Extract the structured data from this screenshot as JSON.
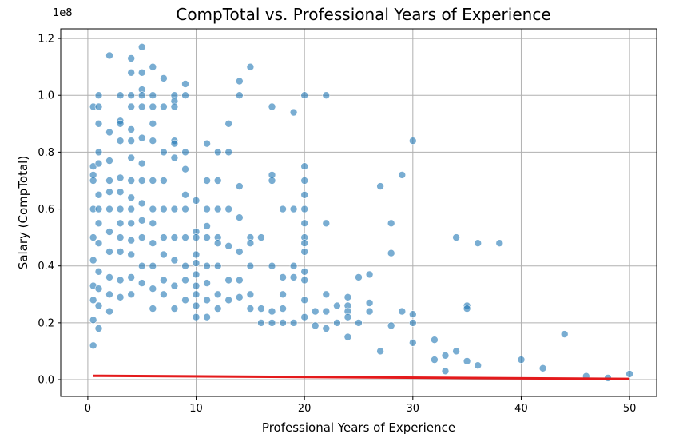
{
  "chart_data": {
    "type": "scatter",
    "title": "CompTotal vs. Professional Years of Experience",
    "xlabel": "Professional Years of Experience",
    "ylabel": "Salary (CompTotal)",
    "y_offset_label": "1e8",
    "xlim": [
      -2.5,
      52.5
    ],
    "ylim": [
      -5900000,
      123400000
    ],
    "x_ticks": [
      0,
      10,
      20,
      30,
      40,
      50
    ],
    "x_tick_labels": [
      "0",
      "10",
      "20",
      "30",
      "40",
      "50"
    ],
    "y_ticks": [
      0,
      20000000,
      40000000,
      60000000,
      80000000,
      100000000,
      120000000
    ],
    "y_tick_labels": [
      "0.0",
      "0.2",
      "0.4",
      "0.6",
      "0.8",
      "1.0",
      "1.2"
    ],
    "grid": true,
    "series": [
      {
        "values": [
          [
            0.5,
            96000000
          ],
          [
            0.5,
            75000000
          ],
          [
            0.5,
            72000000
          ],
          [
            0.5,
            70000000
          ],
          [
            0.5,
            60000000
          ],
          [
            0.5,
            50000000
          ],
          [
            0.5,
            42000000
          ],
          [
            0.5,
            33000000
          ],
          [
            0.5,
            28000000
          ],
          [
            0.5,
            21000000
          ],
          [
            0.5,
            12000000
          ],
          [
            1,
            100000000
          ],
          [
            1,
            96000000
          ],
          [
            1,
            90000000
          ],
          [
            1,
            80000000
          ],
          [
            1,
            76000000
          ],
          [
            1,
            65000000
          ],
          [
            1,
            60000000
          ],
          [
            1,
            55000000
          ],
          [
            1,
            48000000
          ],
          [
            1,
            38000000
          ],
          [
            1,
            32000000
          ],
          [
            1,
            26000000
          ],
          [
            1,
            18000000
          ],
          [
            2,
            114000000
          ],
          [
            2,
            87000000
          ],
          [
            2,
            77000000
          ],
          [
            2,
            70000000
          ],
          [
            2,
            66000000
          ],
          [
            2,
            60000000
          ],
          [
            2,
            52000000
          ],
          [
            2,
            45000000
          ],
          [
            2,
            36000000
          ],
          [
            2,
            30000000
          ],
          [
            2,
            24000000
          ],
          [
            3,
            100000000
          ],
          [
            3,
            91000000
          ],
          [
            3,
            90000000
          ],
          [
            3,
            84000000
          ],
          [
            3,
            71000000
          ],
          [
            3,
            66000000
          ],
          [
            3,
            60000000
          ],
          [
            3,
            55000000
          ],
          [
            3,
            50000000
          ],
          [
            3,
            45000000
          ],
          [
            3,
            35000000
          ],
          [
            3,
            29000000
          ],
          [
            4,
            113000000
          ],
          [
            4,
            108000000
          ],
          [
            4,
            100000000
          ],
          [
            4,
            96000000
          ],
          [
            4,
            88000000
          ],
          [
            4,
            84000000
          ],
          [
            4,
            78000000
          ],
          [
            4,
            70000000
          ],
          [
            4,
            64000000
          ],
          [
            4,
            60000000
          ],
          [
            4,
            55000000
          ],
          [
            4,
            49000000
          ],
          [
            4,
            44000000
          ],
          [
            4,
            36000000
          ],
          [
            4,
            30000000
          ],
          [
            5,
            117000000
          ],
          [
            5,
            108000000
          ],
          [
            5,
            102000000
          ],
          [
            5,
            100000000
          ],
          [
            5,
            96000000
          ],
          [
            5,
            85000000
          ],
          [
            5,
            76000000
          ],
          [
            5,
            70000000
          ],
          [
            5,
            62000000
          ],
          [
            5,
            56000000
          ],
          [
            5,
            50000000
          ],
          [
            5,
            40000000
          ],
          [
            5,
            34000000
          ],
          [
            6,
            110000000
          ],
          [
            6,
            100000000
          ],
          [
            6,
            96000000
          ],
          [
            6,
            90000000
          ],
          [
            6,
            84000000
          ],
          [
            6,
            70000000
          ],
          [
            6,
            60000000
          ],
          [
            6,
            55000000
          ],
          [
            6,
            48000000
          ],
          [
            6,
            40000000
          ],
          [
            6,
            32000000
          ],
          [
            6,
            25000000
          ],
          [
            7,
            106000000
          ],
          [
            7,
            96000000
          ],
          [
            7,
            80000000
          ],
          [
            7,
            70000000
          ],
          [
            7,
            60000000
          ],
          [
            7,
            50000000
          ],
          [
            7,
            44000000
          ],
          [
            7,
            35000000
          ],
          [
            7,
            30000000
          ],
          [
            8,
            100000000
          ],
          [
            8,
            98000000
          ],
          [
            8,
            96000000
          ],
          [
            8,
            84000000
          ],
          [
            8,
            83000000
          ],
          [
            8,
            78000000
          ],
          [
            8,
            60000000
          ],
          [
            8,
            50000000
          ],
          [
            8,
            42000000
          ],
          [
            8,
            33000000
          ],
          [
            8,
            25000000
          ],
          [
            9,
            104000000
          ],
          [
            9,
            100000000
          ],
          [
            9,
            80000000
          ],
          [
            9,
            74000000
          ],
          [
            9,
            65000000
          ],
          [
            9,
            60000000
          ],
          [
            9,
            50000000
          ],
          [
            9,
            40000000
          ],
          [
            9,
            35000000
          ],
          [
            9,
            28000000
          ],
          [
            10,
            63000000
          ],
          [
            10,
            52000000
          ],
          [
            10,
            50000000
          ],
          [
            10,
            44000000
          ],
          [
            10,
            41000000
          ],
          [
            10,
            37000000
          ],
          [
            10,
            33000000
          ],
          [
            10,
            30000000
          ],
          [
            10,
            26000000
          ],
          [
            10,
            22000000
          ],
          [
            11,
            83000000
          ],
          [
            11,
            70000000
          ],
          [
            11,
            60000000
          ],
          [
            11,
            54000000
          ],
          [
            11,
            50000000
          ],
          [
            11,
            40000000
          ],
          [
            11,
            34000000
          ],
          [
            11,
            28000000
          ],
          [
            11,
            22000000
          ],
          [
            12,
            80000000
          ],
          [
            12,
            70000000
          ],
          [
            12,
            60000000
          ],
          [
            12,
            50000000
          ],
          [
            12,
            48000000
          ],
          [
            12,
            40000000
          ],
          [
            12,
            30000000
          ],
          [
            12,
            25000000
          ],
          [
            13,
            90000000
          ],
          [
            13,
            80000000
          ],
          [
            13,
            60000000
          ],
          [
            13,
            47000000
          ],
          [
            13,
            35000000
          ],
          [
            13,
            28000000
          ],
          [
            14,
            105000000
          ],
          [
            14,
            100000000
          ],
          [
            14,
            68000000
          ],
          [
            14,
            57000000
          ],
          [
            14,
            45000000
          ],
          [
            14,
            35000000
          ],
          [
            14,
            29000000
          ],
          [
            15,
            110000000
          ],
          [
            15,
            50000000
          ],
          [
            15,
            48000000
          ],
          [
            15,
            40000000
          ],
          [
            15,
            30000000
          ],
          [
            15,
            25000000
          ],
          [
            16,
            50000000
          ],
          [
            16,
            25000000
          ],
          [
            16,
            20000000
          ],
          [
            17,
            96000000
          ],
          [
            17,
            72000000
          ],
          [
            17,
            70000000
          ],
          [
            17,
            40000000
          ],
          [
            17,
            24000000
          ],
          [
            17,
            20000000
          ],
          [
            18,
            60000000
          ],
          [
            18,
            36000000
          ],
          [
            18,
            30000000
          ],
          [
            18,
            25000000
          ],
          [
            18,
            20000000
          ],
          [
            19,
            94000000
          ],
          [
            19,
            60000000
          ],
          [
            19,
            40000000
          ],
          [
            19,
            36000000
          ],
          [
            19,
            20000000
          ],
          [
            20,
            100000000
          ],
          [
            20,
            75000000
          ],
          [
            20,
            70000000
          ],
          [
            20,
            65000000
          ],
          [
            20,
            60000000
          ],
          [
            20,
            55000000
          ],
          [
            20,
            50000000
          ],
          [
            20,
            48000000
          ],
          [
            20,
            45000000
          ],
          [
            20,
            38000000
          ],
          [
            20,
            35000000
          ],
          [
            20,
            28000000
          ],
          [
            20,
            22000000
          ],
          [
            21,
            24000000
          ],
          [
            21,
            19000000
          ],
          [
            22,
            100000000
          ],
          [
            22,
            55000000
          ],
          [
            22,
            30000000
          ],
          [
            22,
            24000000
          ],
          [
            22,
            18000000
          ],
          [
            23,
            26000000
          ],
          [
            23,
            20000000
          ],
          [
            24,
            29000000
          ],
          [
            24,
            26000000
          ],
          [
            24,
            24000000
          ],
          [
            24,
            22000000
          ],
          [
            24,
            15000000
          ],
          [
            25,
            36000000
          ],
          [
            25,
            20000000
          ],
          [
            26,
            37000000
          ],
          [
            26,
            27000000
          ],
          [
            26,
            24000000
          ],
          [
            27,
            68000000
          ],
          [
            27,
            10000000
          ],
          [
            28,
            55000000
          ],
          [
            28,
            44500000
          ],
          [
            28,
            19000000
          ],
          [
            29,
            72000000
          ],
          [
            29,
            24000000
          ],
          [
            30,
            84000000
          ],
          [
            30,
            23000000
          ],
          [
            30,
            20000000
          ],
          [
            30,
            13000000
          ],
          [
            32,
            14000000
          ],
          [
            32,
            7000000
          ],
          [
            33,
            8500000
          ],
          [
            33,
            3000000
          ],
          [
            34,
            50000000
          ],
          [
            34,
            10000000
          ],
          [
            35,
            26000000
          ],
          [
            35,
            25000000
          ],
          [
            35,
            6500000
          ],
          [
            36,
            48000000
          ],
          [
            36,
            5000000
          ],
          [
            38,
            48000000
          ],
          [
            40,
            7000000
          ],
          [
            42,
            4000000
          ],
          [
            44,
            16000000
          ],
          [
            46,
            1200000
          ],
          [
            48,
            600000
          ],
          [
            50,
            2000000
          ]
        ]
      }
    ],
    "trend_line": {
      "color": "#e41a1c",
      "points": [
        [
          0.5,
          1350000
        ],
        [
          50,
          250000
        ]
      ]
    },
    "colors": {
      "points": "#1f77b4",
      "point_edge": "#ffffff",
      "grid": "#b0b0b0",
      "trend": "#e41a1c"
    }
  }
}
